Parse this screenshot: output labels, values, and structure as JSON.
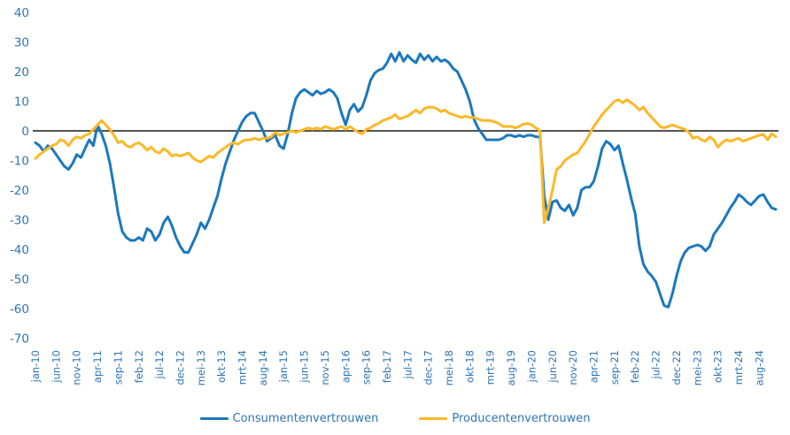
{
  "chart_data": {
    "type": "line",
    "title": "",
    "xlabel": "",
    "ylabel": "",
    "grid": false,
    "legend_position": "bottom-center",
    "ylim": [
      -70,
      40
    ],
    "y_ticks": [
      40,
      30,
      20,
      10,
      0,
      -10,
      -20,
      -30,
      -40,
      -50,
      -60,
      -70
    ],
    "x_monthly_from": "jan-10",
    "x_monthly_to": "dec-24",
    "x_tick_interval_months": 5,
    "x_tick_labels": [
      "jan-10",
      "jun-10",
      "nov-10",
      "apr-11",
      "sep-11",
      "feb-12",
      "jul-12",
      "dec-12",
      "mei-13",
      "okt-13",
      "mrt-14",
      "aug-14",
      "jan-15",
      "jun-15",
      "nov-15",
      "apr-16",
      "sep-16",
      "feb-17",
      "jul-17",
      "dec-17",
      "mei-18",
      "okt-18",
      "mrt-19",
      "aug-19",
      "jan-20",
      "jun-20",
      "nov-20",
      "apr-21",
      "sep-21",
      "feb-22",
      "jul-22",
      "dec-22",
      "mei-23",
      "okt-23",
      "mrt-24",
      "aug-24"
    ],
    "zero_line_color": "#1a1a1a",
    "axis_label_color": "#2E75B6",
    "series": [
      {
        "name": "Consumentenvertrouwen",
        "color": "#1B78BE",
        "values": [
          -4,
          -5,
          -7,
          -5,
          -6,
          -8,
          -10,
          -12,
          -13,
          -11,
          -8,
          -9,
          -6,
          -3,
          -5,
          2,
          -1,
          -5,
          -11,
          -19,
          -28,
          -34,
          -36,
          -37,
          -37,
          -36,
          -37,
          -33,
          -34,
          -37,
          -35,
          -31,
          -29,
          -32,
          -36,
          -39,
          -41,
          -41,
          -38,
          -35,
          -31,
          -33,
          -30,
          -26,
          -22,
          -16,
          -11,
          -7,
          -3,
          0,
          3,
          5,
          6,
          6,
          3,
          0,
          -3.5,
          -2.5,
          -1.5,
          -5,
          -6,
          -1,
          6,
          11,
          13,
          14,
          13,
          12,
          13.5,
          12.5,
          13,
          14,
          13,
          11,
          6,
          2,
          7,
          9,
          6.5,
          8,
          12,
          17,
          19.5,
          20.5,
          21,
          23,
          26,
          23.5,
          26.5,
          23.5,
          25.5,
          24,
          23,
          26,
          24,
          25.5,
          23.5,
          25,
          23.5,
          24,
          23,
          21,
          20,
          17,
          14,
          10,
          4,
          1,
          -1,
          -3,
          -3,
          -3,
          -3,
          -2.5,
          -1.5,
          -1.5,
          -2,
          -1.5,
          -2,
          -1.5,
          -1.5,
          -2,
          -2,
          -22,
          -30,
          -24,
          -23.5,
          -26,
          -27,
          -25,
          -28.5,
          -26,
          -20,
          -19,
          -19,
          -17,
          -12,
          -6,
          -3.5,
          -4.5,
          -6.5,
          -5,
          -11,
          -16.5,
          -22.5,
          -28,
          -39,
          -45,
          -47.5,
          -49,
          -51,
          -55,
          -59,
          -59.5,
          -55,
          -49,
          -44,
          -41,
          -39.5,
          -39,
          -38.5,
          -39,
          -40.5,
          -39,
          -35,
          -33,
          -31,
          -28.5,
          -26,
          -24,
          -21.5,
          -22.5,
          -24,
          -25,
          -23.5,
          -22,
          -21.5,
          -24,
          -26,
          -26.5
        ]
      },
      {
        "name": "Producentenvertrouwen",
        "color": "#FCB826",
        "values": [
          -9.3,
          -8,
          -7,
          -6,
          -5,
          -4.5,
          -3,
          -3.5,
          -5,
          -3,
          -2,
          -2.5,
          -1.5,
          -1,
          0.5,
          2,
          3.5,
          2,
          0.5,
          -1.5,
          -4,
          -3.5,
          -5,
          -5.5,
          -4.5,
          -4,
          -5,
          -6.5,
          -5.5,
          -7,
          -7.5,
          -6,
          -7,
          -8.5,
          -8,
          -8.5,
          -8,
          -7.5,
          -9,
          -10,
          -10.5,
          -9.5,
          -8.5,
          -9,
          -7.5,
          -6.5,
          -5.5,
          -4.5,
          -4,
          -4.5,
          -3.5,
          -3,
          -3,
          -2.5,
          -3,
          -2.5,
          -2.5,
          -2,
          -0.5,
          -1.5,
          -1,
          -0.5,
          0,
          -0.5,
          0,
          0.5,
          1,
          0.5,
          1,
          0.5,
          1.5,
          1,
          0.5,
          1,
          1.5,
          0.5,
          1.5,
          0.5,
          -0.5,
          -1,
          0.5,
          1,
          2,
          2.5,
          3.5,
          4,
          4.5,
          5.5,
          4,
          4.5,
          5,
          6,
          7,
          6,
          7.5,
          8,
          8,
          7.5,
          6.5,
          7,
          6,
          5.5,
          5,
          4.5,
          5,
          4.5,
          4.5,
          4,
          3.5,
          3.5,
          3.5,
          3,
          2.5,
          1.5,
          1.5,
          1.5,
          1,
          1.5,
          2.3,
          2.5,
          2,
          1,
          0,
          -31,
          -26,
          -20,
          -13,
          -12,
          -10,
          -9,
          -8,
          -7.5,
          -5.5,
          -3.5,
          -1,
          1.5,
          3.5,
          5.5,
          7,
          8.5,
          10,
          10.5,
          9.5,
          10.5,
          9.5,
          8.5,
          7,
          8,
          6,
          4.5,
          3,
          1.5,
          1,
          1.5,
          2,
          1.5,
          1,
          0.5,
          -0.5,
          -2.5,
          -2,
          -3,
          -3.5,
          -2,
          -3,
          -5.5,
          -4,
          -3,
          -3.5,
          -3,
          -2.5,
          -3.5,
          -3,
          -2.5,
          -2,
          -1.5,
          -1.2,
          -3,
          -1,
          -2
        ]
      }
    ]
  }
}
